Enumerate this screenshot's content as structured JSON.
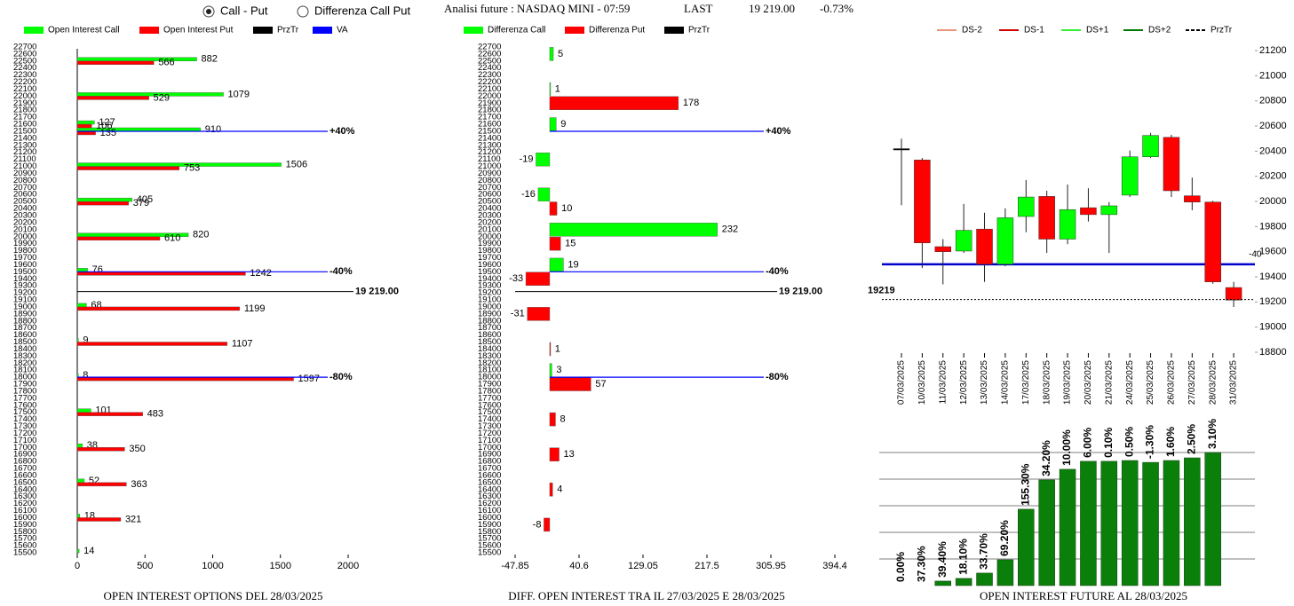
{
  "header": {
    "options": [
      {
        "label": "Call - Put",
        "selected": true
      },
      {
        "label": "Differenza Call Put",
        "selected": false
      }
    ],
    "instrument": "Analisi future : NASDAQ MINI - 07:59",
    "last_label": "LAST",
    "last": "19 219.00",
    "change": "-0.73%"
  },
  "chart_data": [
    {
      "type": "hbar",
      "title": "OPEN INTEREST OPTIONS DEL 28/03/2025",
      "categories": [
        22500,
        22000,
        21600,
        21500,
        21000,
        20500,
        20000,
        19500,
        19000,
        18500,
        18000,
        17500,
        17000,
        16500,
        16000,
        15500
      ],
      "series": [
        {
          "name": "Open Interest Call",
          "color": "#00ff00",
          "values": [
            882,
            1079,
            127,
            910,
            1506,
            405,
            820,
            76,
            68,
            9,
            8,
            101,
            38,
            52,
            18,
            14
          ]
        },
        {
          "name": "Open Interest Put",
          "color": "#ff0000",
          "values": [
            566,
            529,
            106,
            135,
            753,
            379,
            610,
            1242,
            1199,
            1107,
            1597,
            483,
            350,
            363,
            321,
            null
          ]
        }
      ],
      "ylim": [
        15450,
        22750
      ],
      "yticks": [
        22700,
        22600,
        22500,
        22400,
        22300,
        22200,
        22100,
        22000,
        21900,
        21800,
        21700,
        21600,
        21500,
        21400,
        21300,
        21200,
        21100,
        21000,
        20900,
        20800,
        20700,
        20600,
        20500,
        20400,
        20300,
        20200,
        20100,
        20000,
        19900,
        19800,
        19700,
        19600,
        19500,
        19400,
        19300,
        19200,
        19100,
        19000,
        18900,
        18800,
        18700,
        18600,
        18500,
        18400,
        18300,
        18200,
        18100,
        18000,
        17900,
        17800,
        17700,
        17600,
        17500,
        17400,
        17300,
        17200,
        17100,
        17000,
        16900,
        16800,
        16700,
        16600,
        16500,
        16400,
        16300,
        16200,
        16100,
        16000,
        15900,
        15800,
        15700,
        15600,
        15500
      ],
      "xlim": [
        0,
        2000
      ],
      "xticks": [
        0,
        500,
        1000,
        1500,
        2000
      ],
      "price_line": {
        "name": "PrzTr",
        "color": "#000000",
        "value": 19219,
        "label": "19 219.00"
      },
      "va_lines": {
        "name": "VA",
        "color": "#0000ff",
        "lines": [
          {
            "value": 21500,
            "label": "+40%"
          },
          {
            "value": 19500,
            "label": "-40%"
          },
          {
            "value": 18000,
            "label": "-80%"
          }
        ]
      }
    },
    {
      "type": "hbar",
      "title": "DIFF. OPEN INTEREST TRA IL 27/03/2025 E 28/03/2025",
      "categories": [
        22600,
        22100,
        21900,
        21600,
        21100,
        20600,
        20400,
        20100,
        19900,
        19600,
        19400,
        18900,
        18400,
        18100,
        17900,
        17400,
        16900,
        16400,
        15900
      ],
      "series": [
        {
          "name": "Differenza Call",
          "color": "#00ff00",
          "values": [
            5,
            1,
            null,
            9,
            -19,
            -16,
            null,
            232,
            null,
            19,
            null,
            null,
            null,
            3,
            null,
            null,
            null,
            null,
            null
          ]
        },
        {
          "name": "Differenza Put",
          "color": "#ff0000",
          "values": [
            null,
            null,
            178,
            null,
            null,
            null,
            10,
            null,
            15,
            null,
            -33,
            -31,
            1,
            null,
            57,
            8,
            13,
            4,
            -8
          ]
        }
      ],
      "ylim": [
        15450,
        22750
      ],
      "yticks": [
        22700,
        22600,
        22500,
        22400,
        22300,
        22200,
        22100,
        22000,
        21900,
        21800,
        21700,
        21600,
        21500,
        21400,
        21300,
        21200,
        21100,
        21000,
        20900,
        20800,
        20700,
        20600,
        20500,
        20400,
        20300,
        20200,
        20100,
        20000,
        19900,
        19800,
        19700,
        19600,
        19500,
        19400,
        19300,
        19200,
        19100,
        19000,
        18900,
        18800,
        18700,
        18600,
        18500,
        18400,
        18300,
        18200,
        18100,
        18000,
        17900,
        17800,
        17700,
        17600,
        17500,
        17400,
        17300,
        17200,
        17100,
        17000,
        16900,
        16800,
        16700,
        16600,
        16500,
        16400,
        16300,
        16200,
        16100,
        16000,
        15900,
        15800,
        15700,
        15600,
        15500
      ],
      "xlim": [
        -47.85,
        394.4
      ],
      "xticks": [
        -47.85,
        40.6,
        129.05,
        217.5,
        305.95,
        394.4
      ],
      "price_line": {
        "name": "PrzTr",
        "color": "#000000",
        "value": 19219,
        "label": "19 219.00"
      },
      "va_lines": {
        "color": "#0000ff",
        "lines": [
          {
            "value": 21500,
            "label": "+40%"
          },
          {
            "value": 19500,
            "label": "-40%"
          },
          {
            "value": 18000,
            "label": "-80%"
          }
        ]
      }
    },
    {
      "type": "candlestick",
      "categories": [
        "07/03/2025",
        "10/03/2025",
        "11/03/2025",
        "12/03/2025",
        "13/03/2025",
        "14/03/2025",
        "17/03/2025",
        "18/03/2025",
        "19/03/2025",
        "20/03/2025",
        "21/03/2025",
        "24/03/2025",
        "25/03/2025",
        "26/03/2025",
        "27/03/2025",
        "28/03/2025",
        "31/03/2025"
      ],
      "open": [
        20420,
        20330,
        19640,
        19605,
        19780,
        19500,
        19880,
        20040,
        19700,
        19950,
        19895,
        20050,
        20355,
        20510,
        20045,
        19995,
        19315
      ],
      "high": [
        20500,
        20345,
        19700,
        19980,
        19910,
        19945,
        20170,
        20085,
        20135,
        20105,
        19995,
        20405,
        20545,
        20530,
        20190,
        20005,
        19360
      ],
      "low": [
        19970,
        19470,
        19340,
        19590,
        19360,
        19485,
        19755,
        19590,
        19660,
        19840,
        19590,
        20035,
        20345,
        20035,
        19930,
        19345,
        19160
      ],
      "close": [
        20420,
        19670,
        19600,
        19770,
        19500,
        19870,
        20035,
        19700,
        19935,
        19895,
        19965,
        20355,
        20525,
        20085,
        19995,
        19360,
        19215
      ],
      "up_color": "#00ff00",
      "down_color": "#ff0000",
      "flat_color": "#000000",
      "ylim": [
        18800,
        21285
      ],
      "yticks": [
        18800,
        19000,
        19200,
        19400,
        19600,
        19800,
        20000,
        20200,
        20400,
        20600,
        20800,
        21000,
        21200
      ],
      "legend": [
        {
          "name": "DS-2",
          "color": "#e9967a",
          "dashed": false
        },
        {
          "name": "DS-1",
          "color": "#cc0000",
          "dashed": false
        },
        {
          "name": "DS+1",
          "color": "#33ee33",
          "dashed": false
        },
        {
          "name": "DS+2",
          "color": "#007700",
          "dashed": false
        },
        {
          "name": "PrzTr",
          "color": "#000000",
          "dashed": true
        }
      ],
      "price_line": {
        "value": 19219,
        "color": "#000000"
      },
      "va_lines": {
        "color": "#0000cc",
        "lines": [
          {
            "value": 19500,
            "label": "-40"
          }
        ]
      }
    },
    {
      "type": "bar",
      "title": "OPEN INTEREST FUTURE AL 28/03/2025",
      "values": [
        0,
        0,
        0.17,
        0.27,
        0.47,
        0.97,
        2.87,
        3.97,
        4.37,
        4.67,
        4.67,
        4.7,
        4.63,
        4.7,
        4.8,
        5.0
      ],
      "labels": [
        "0.00%",
        "37.30%",
        "39.40%",
        "18.10%",
        "33.70%",
        "69.20%",
        "155.30%",
        "34.20%",
        "10.00%",
        "6.00%",
        "0.10%",
        "0.50%",
        "-1.30%",
        "1.60%",
        "2.50%",
        "3.10%"
      ],
      "color": "#0a800a",
      "ylim": [
        0,
        5
      ],
      "grid_lines": [
        1,
        2,
        3,
        4,
        5
      ]
    }
  ]
}
